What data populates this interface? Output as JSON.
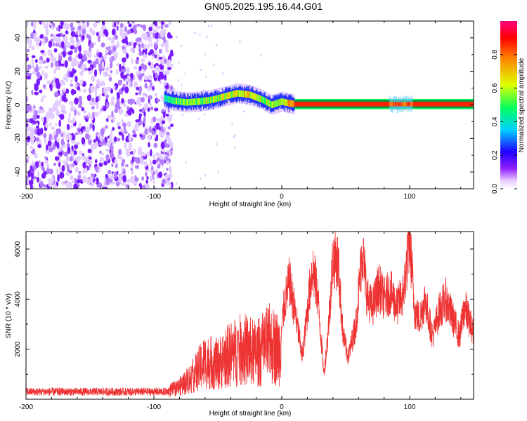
{
  "figure": {
    "title": "GN05.2025.195.16.44.G01"
  },
  "chart_data": [
    {
      "type": "heatmap",
      "title": "GN05.2025.195.16.44.G01",
      "xlabel": "Height of straight line (km)",
      "ylabel": "Frequency (Hz)",
      "xlim": [
        -200,
        150
      ],
      "ylim": [
        -50,
        50
      ],
      "x_ticks": [
        -200,
        -100,
        0,
        100
      ],
      "y_ticks": [
        -40,
        -20,
        0,
        20,
        40
      ],
      "colorbar": {
        "label": "Normalized spectral amplitude",
        "range": [
          0,
          1
        ],
        "ticks": [
          0.0,
          0.2,
          0.4,
          0.6,
          0.8
        ],
        "colors": [
          "#ffffff",
          "#e8c8ff",
          "#8000ff",
          "#0000ff",
          "#00d0ff",
          "#00ff40",
          "#ffff00",
          "#ff8000",
          "#ff0000",
          "#ff00a0"
        ]
      },
      "noise_region_x": [
        -200,
        -88
      ],
      "signal_track": [
        {
          "x": -92,
          "freq": 4,
          "amp": 0.45
        },
        {
          "x": -85,
          "freq": 2.5,
          "amp": 0.5
        },
        {
          "x": -75,
          "freq": 1.5,
          "amp": 0.55
        },
        {
          "x": -65,
          "freq": 2,
          "amp": 0.55
        },
        {
          "x": -55,
          "freq": 3,
          "amp": 0.55
        },
        {
          "x": -45,
          "freq": 5,
          "amp": 0.6
        },
        {
          "x": -35,
          "freq": 7,
          "amp": 0.65
        },
        {
          "x": -25,
          "freq": 6,
          "amp": 0.65
        },
        {
          "x": -15,
          "freq": 3,
          "amp": 0.6
        },
        {
          "x": -8,
          "freq": 0,
          "amp": 0.55
        },
        {
          "x": 0,
          "freq": 2,
          "amp": 0.6
        },
        {
          "x": 5,
          "freq": 1,
          "amp": 0.7
        },
        {
          "x": 10,
          "freq": 0.5,
          "amp": 0.85
        },
        {
          "x": 150,
          "freq": 0.5,
          "amp": 0.85
        }
      ],
      "grid": false
    },
    {
      "type": "line",
      "xlabel": "Height of straight line (km)",
      "ylabel": "SNR (10 * v/v)",
      "xlim": [
        -200,
        150
      ],
      "ylim": [
        0,
        6700
      ],
      "x_ticks": [
        -200,
        -100,
        0,
        100
      ],
      "y_ticks": [
        2000,
        4000,
        6000
      ],
      "color": "#ee3333",
      "envelope": [
        {
          "x": -200,
          "y": 300
        },
        {
          "x": -150,
          "y": 300
        },
        {
          "x": -90,
          "y": 300
        },
        {
          "x": -80,
          "y": 500
        },
        {
          "x": -70,
          "y": 900
        },
        {
          "x": -60,
          "y": 1500
        },
        {
          "x": -50,
          "y": 1400
        },
        {
          "x": -40,
          "y": 1800
        },
        {
          "x": -30,
          "y": 2000
        },
        {
          "x": -20,
          "y": 1800
        },
        {
          "x": -10,
          "y": 2200
        },
        {
          "x": -2,
          "y": 2000
        },
        {
          "x": 2,
          "y": 3800
        },
        {
          "x": 6,
          "y": 4700
        },
        {
          "x": 12,
          "y": 3000
        },
        {
          "x": 16,
          "y": 1700
        },
        {
          "x": 20,
          "y": 3500
        },
        {
          "x": 24,
          "y": 5300
        },
        {
          "x": 28,
          "y": 4200
        },
        {
          "x": 33,
          "y": 1000
        },
        {
          "x": 36,
          "y": 2500
        },
        {
          "x": 40,
          "y": 5600
        },
        {
          "x": 44,
          "y": 5500
        },
        {
          "x": 48,
          "y": 2500
        },
        {
          "x": 52,
          "y": 1700
        },
        {
          "x": 58,
          "y": 3000
        },
        {
          "x": 63,
          "y": 6000
        },
        {
          "x": 67,
          "y": 4000
        },
        {
          "x": 71,
          "y": 3700
        },
        {
          "x": 76,
          "y": 4500
        },
        {
          "x": 80,
          "y": 4000
        },
        {
          "x": 85,
          "y": 4300
        },
        {
          "x": 90,
          "y": 3700
        },
        {
          "x": 95,
          "y": 4200
        },
        {
          "x": 100,
          "y": 6400
        },
        {
          "x": 104,
          "y": 3500
        },
        {
          "x": 108,
          "y": 3200
        },
        {
          "x": 112,
          "y": 4000
        },
        {
          "x": 118,
          "y": 2500
        },
        {
          "x": 123,
          "y": 3500
        },
        {
          "x": 128,
          "y": 4000
        },
        {
          "x": 134,
          "y": 3200
        },
        {
          "x": 139,
          "y": 2500
        },
        {
          "x": 143,
          "y": 3700
        },
        {
          "x": 150,
          "y": 2600
        }
      ],
      "grid": false
    }
  ]
}
